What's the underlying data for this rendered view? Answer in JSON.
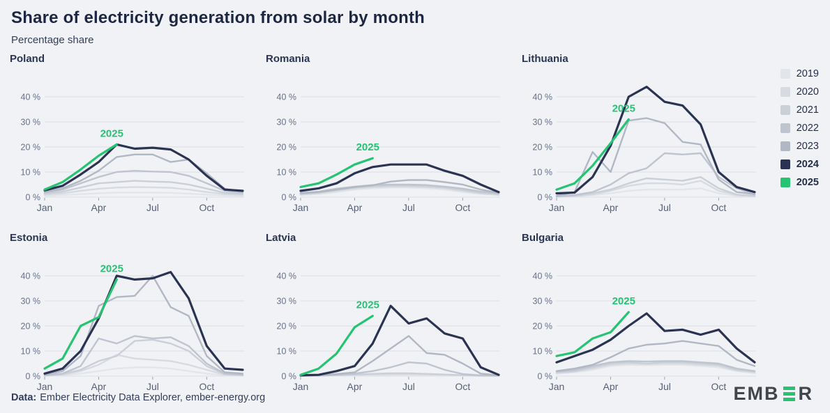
{
  "header": {
    "title": "Share of electricity generation from solar by month",
    "subtitle": "Percentage share"
  },
  "colors": {
    "background": "#f0f2f6",
    "grid": "#dcdee4",
    "tick": "#9aa2b2",
    "axis_y": "#68718a",
    "axis_x": "#565f75",
    "2019": "#e2e5ea",
    "2020": "#d7dbe1",
    "2021": "#cbd0d8",
    "2022": "#bfc5cf",
    "2023": "#b1b8c4",
    "2024": "#2b3352",
    "2025": "#24c472"
  },
  "legend": {
    "entries": [
      {
        "label": "2019",
        "color": "#e2e5ea"
      },
      {
        "label": "2020",
        "color": "#d7dbe1"
      },
      {
        "label": "2021",
        "color": "#cbd0d8"
      },
      {
        "label": "2022",
        "color": "#bfc5cf"
      },
      {
        "label": "2023",
        "color": "#b1b8c4"
      },
      {
        "label": "2024",
        "color": "#2b3352"
      },
      {
        "label": "2025",
        "color": "#24c472"
      }
    ]
  },
  "chart_data": [
    {
      "type": "line",
      "country": "Poland",
      "unit": "%",
      "months": [
        "Jan",
        "Feb",
        "Mar",
        "Apr",
        "May",
        "Jun",
        "Jul",
        "Aug",
        "Sep",
        "Oct",
        "Nov",
        "Dec"
      ],
      "tick_indices": [
        0,
        3,
        6,
        9
      ],
      "yticks": [
        0,
        10,
        20,
        30,
        40
      ],
      "ylim": [
        0,
        45
      ],
      "annotation": "2025",
      "series": [
        {
          "name": "2019",
          "values": [
            0.5,
            0.8,
            1.2,
            1.5,
            1.8,
            1.8,
            1.8,
            1.7,
            1.4,
            1,
            0.6,
            0.5
          ]
        },
        {
          "name": "2020",
          "values": [
            1,
            1.5,
            2.5,
            3.3,
            3.8,
            4,
            3.9,
            3.7,
            3,
            2,
            1.2,
            0.9
          ]
        },
        {
          "name": "2021",
          "values": [
            1.3,
            2.2,
            3.8,
            5.5,
            6,
            6.5,
            6.2,
            6,
            5,
            3.4,
            1.7,
            1.2
          ]
        },
        {
          "name": "2022",
          "values": [
            1.8,
            3,
            5.5,
            8,
            10,
            10.5,
            10.2,
            10,
            8.5,
            5.5,
            2.5,
            1.7
          ]
        },
        {
          "name": "2023",
          "values": [
            2,
            3.5,
            6.5,
            10.5,
            16,
            17,
            17,
            14,
            15,
            9.5,
            3.3,
            2.2
          ]
        },
        {
          "name": "2024",
          "values": [
            2.7,
            4.5,
            9,
            14,
            21,
            19.3,
            19.7,
            19,
            15,
            8.5,
            3,
            2.5
          ]
        },
        {
          "name": "2025",
          "values": [
            3,
            6,
            11,
            16.5,
            21
          ]
        }
      ]
    },
    {
      "type": "line",
      "country": "Romania",
      "unit": "%",
      "months": [
        "Jan",
        "Feb",
        "Mar",
        "Apr",
        "May",
        "Jun",
        "Jul",
        "Aug",
        "Sep",
        "Oct",
        "Nov",
        "Dec"
      ],
      "tick_indices": [
        0,
        3,
        6,
        9
      ],
      "yticks": [
        0,
        10,
        20,
        30,
        40
      ],
      "ylim": [
        0,
        45
      ],
      "annotation": "2025",
      "series": [
        {
          "name": "2019",
          "values": [
            0.8,
            1.2,
            2,
            3,
            3.5,
            3.8,
            3.8,
            3.5,
            3,
            2,
            1.2,
            0.8
          ]
        },
        {
          "name": "2020",
          "values": [
            1,
            1.5,
            2.5,
            3.4,
            4,
            4.2,
            4.2,
            4,
            3.5,
            2.5,
            1.5,
            1
          ]
        },
        {
          "name": "2021",
          "values": [
            1.2,
            1.8,
            2.8,
            3.8,
            4.3,
            4.6,
            4.6,
            4.3,
            3.8,
            2.8,
            1.7,
            1.2
          ]
        },
        {
          "name": "2022",
          "values": [
            1.7,
            2.2,
            3.4,
            4.2,
            4.8,
            5,
            5,
            4.8,
            4.2,
            3.4,
            2.2,
            1.5
          ]
        },
        {
          "name": "2023",
          "values": [
            1.5,
            2,
            3,
            4,
            4.7,
            6.2,
            6.8,
            6.8,
            6,
            5,
            3,
            1.7
          ]
        },
        {
          "name": "2024",
          "values": [
            2.5,
            3.5,
            5.5,
            9.5,
            12,
            13,
            13,
            13,
            10.5,
            8.5,
            5,
            2
          ]
        },
        {
          "name": "2025",
          "values": [
            4,
            5.5,
            9,
            13,
            15.5
          ]
        }
      ]
    },
    {
      "type": "line",
      "country": "Lithuania",
      "unit": "%",
      "months": [
        "Jan",
        "Feb",
        "Mar",
        "Apr",
        "May",
        "Jun",
        "Jul",
        "Aug",
        "Sep",
        "Oct",
        "Nov",
        "Dec"
      ],
      "tick_indices": [
        0,
        3,
        6,
        9
      ],
      "yticks": [
        0,
        10,
        20,
        30,
        40
      ],
      "ylim": [
        0,
        45
      ],
      "annotation": "2025",
      "series": [
        {
          "name": "2019",
          "values": [
            0.1,
            0.3,
            0.8,
            1.5,
            2.5,
            3,
            3,
            3,
            3.5,
            1.5,
            0.5,
            0.3
          ]
        },
        {
          "name": "2020",
          "values": [
            0.2,
            0.4,
            1,
            2.5,
            4.5,
            5.5,
            5.5,
            5,
            6.5,
            2.5,
            0.8,
            0.4
          ]
        },
        {
          "name": "2021",
          "values": [
            0.2,
            0.5,
            1.5,
            3,
            5.5,
            7.5,
            7,
            6.5,
            8,
            3.5,
            1,
            0.5
          ]
        },
        {
          "name": "2022",
          "values": [
            0.3,
            0.8,
            2,
            5,
            9.5,
            11.5,
            17.5,
            17,
            17.5,
            8,
            3.5,
            1
          ]
        },
        {
          "name": "2023",
          "values": [
            0.5,
            2,
            18,
            10,
            30.5,
            31.5,
            29.5,
            22,
            21,
            7,
            2,
            1.2
          ]
        },
        {
          "name": "2024",
          "values": [
            1.5,
            1.8,
            8,
            20.5,
            40,
            44,
            38,
            36.5,
            29,
            10,
            4,
            2
          ]
        },
        {
          "name": "2025",
          "values": [
            3,
            5.5,
            12.5,
            21.5,
            31
          ]
        }
      ]
    },
    {
      "type": "line",
      "country": "Estonia",
      "unit": "%",
      "months": [
        "Jan",
        "Feb",
        "Mar",
        "Apr",
        "May",
        "Jun",
        "Jul",
        "Aug",
        "Sep",
        "Oct",
        "Nov",
        "Dec"
      ],
      "tick_indices": [
        0,
        3,
        6,
        9
      ],
      "yticks": [
        0,
        10,
        20,
        30,
        40
      ],
      "ylim": [
        0,
        45
      ],
      "annotation": "2025",
      "series": [
        {
          "name": "2019",
          "values": [
            0.1,
            0.3,
            1,
            2,
            3,
            3.5,
            3.5,
            3,
            2,
            1,
            0.3,
            0.2
          ]
        },
        {
          "name": "2020",
          "values": [
            0.2,
            0.5,
            2,
            4.5,
            8.5,
            7,
            6.5,
            6,
            4.5,
            2.5,
            0.5,
            0.3
          ]
        },
        {
          "name": "2021",
          "values": [
            0.2,
            0.8,
            2.5,
            6,
            8,
            14,
            14.5,
            13,
            10,
            4,
            0.8,
            0.4
          ]
        },
        {
          "name": "2022",
          "values": [
            0.3,
            1,
            4,
            15,
            13,
            16,
            15,
            15.5,
            12,
            5,
            1,
            0.5
          ]
        },
        {
          "name": "2023",
          "values": [
            0.5,
            2,
            8,
            28,
            31.5,
            32,
            40,
            27.5,
            24,
            8,
            1.5,
            1
          ]
        },
        {
          "name": "2024",
          "values": [
            1,
            3,
            10,
            23,
            40,
            38.5,
            39,
            41.5,
            31,
            12,
            3,
            2.5
          ]
        },
        {
          "name": "2025",
          "values": [
            3,
            7,
            20,
            23.5,
            38.5
          ]
        }
      ]
    },
    {
      "type": "line",
      "country": "Latvia",
      "unit": "%",
      "months": [
        "Jan",
        "Feb",
        "Mar",
        "Apr",
        "May",
        "Jun",
        "Jul",
        "Aug",
        "Sep",
        "Oct",
        "Nov",
        "Dec"
      ],
      "tick_indices": [
        0,
        3,
        6,
        9
      ],
      "yticks": [
        0,
        10,
        20,
        30,
        40
      ],
      "ylim": [
        0,
        45
      ],
      "annotation": "2025",
      "series": [
        {
          "name": "2019",
          "values": [
            0.1,
            0.1,
            0.2,
            0.3,
            0.4,
            0.5,
            0.5,
            0.4,
            0.3,
            0.2,
            0.1,
            0.1
          ]
        },
        {
          "name": "2020",
          "values": [
            0.1,
            0.2,
            0.3,
            0.5,
            0.7,
            0.8,
            0.8,
            0.7,
            0.5,
            0.3,
            0.1,
            0.1
          ]
        },
        {
          "name": "2021",
          "values": [
            0.1,
            0.2,
            0.4,
            0.6,
            0.9,
            1.1,
            1.1,
            0.9,
            0.6,
            0.4,
            0.2,
            0.1
          ]
        },
        {
          "name": "2022",
          "values": [
            0.1,
            0.2,
            0.5,
            1,
            2,
            3.5,
            5.5,
            5,
            2.5,
            0.8,
            0.3,
            0.2
          ]
        },
        {
          "name": "2023",
          "values": [
            0.2,
            0.3,
            0.8,
            1.5,
            6,
            11,
            16,
            9.2,
            8.5,
            5,
            1,
            0.3
          ]
        },
        {
          "name": "2024",
          "values": [
            0.3,
            0.5,
            2,
            4,
            13,
            28,
            21,
            23,
            17,
            15,
            3.5,
            0.5
          ]
        },
        {
          "name": "2025",
          "values": [
            0.5,
            3,
            9,
            19.5,
            24
          ]
        }
      ]
    },
    {
      "type": "line",
      "country": "Bulgaria",
      "unit": "%",
      "months": [
        "Jan",
        "Feb",
        "Mar",
        "Apr",
        "May",
        "Jun",
        "Jul",
        "Aug",
        "Sep",
        "Oct",
        "Nov",
        "Dec"
      ],
      "tick_indices": [
        0,
        3,
        6,
        9
      ],
      "yticks": [
        0,
        10,
        20,
        30,
        40
      ],
      "ylim": [
        0,
        45
      ],
      "annotation": "2025",
      "series": [
        {
          "name": "2019",
          "values": [
            1,
            1.5,
            2.5,
            4,
            4.5,
            4.3,
            4.5,
            4.5,
            4,
            3.5,
            2,
            1.2
          ]
        },
        {
          "name": "2020",
          "values": [
            1.2,
            1.8,
            3,
            4.5,
            5,
            4.8,
            5,
            5,
            4.5,
            4,
            2.2,
            1.5
          ]
        },
        {
          "name": "2021",
          "values": [
            1.5,
            2,
            3.5,
            5,
            5.5,
            5,
            5.5,
            5.5,
            5,
            4.5,
            2.5,
            1.8
          ]
        },
        {
          "name": "2022",
          "values": [
            1.8,
            2.5,
            4,
            5.5,
            6,
            5.8,
            6,
            6,
            5.5,
            5,
            3,
            2
          ]
        },
        {
          "name": "2023",
          "values": [
            2,
            3,
            4.5,
            7.5,
            11,
            12.5,
            13,
            14,
            13,
            12,
            6.5,
            4
          ]
        },
        {
          "name": "2024",
          "values": [
            5.5,
            8,
            10.5,
            14.5,
            20,
            25,
            18,
            18.5,
            16.5,
            18.5,
            11,
            5.5
          ]
        },
        {
          "name": "2025",
          "values": [
            8,
            9.5,
            15,
            17.5,
            25.5
          ]
        }
      ]
    }
  ],
  "footer": {
    "label": "Data:",
    "text": "Ember Electricity Data Explorer, ember-energy.org",
    "logo_left": "EMB",
    "logo_right": "R",
    "logo_name": "EMBER"
  }
}
